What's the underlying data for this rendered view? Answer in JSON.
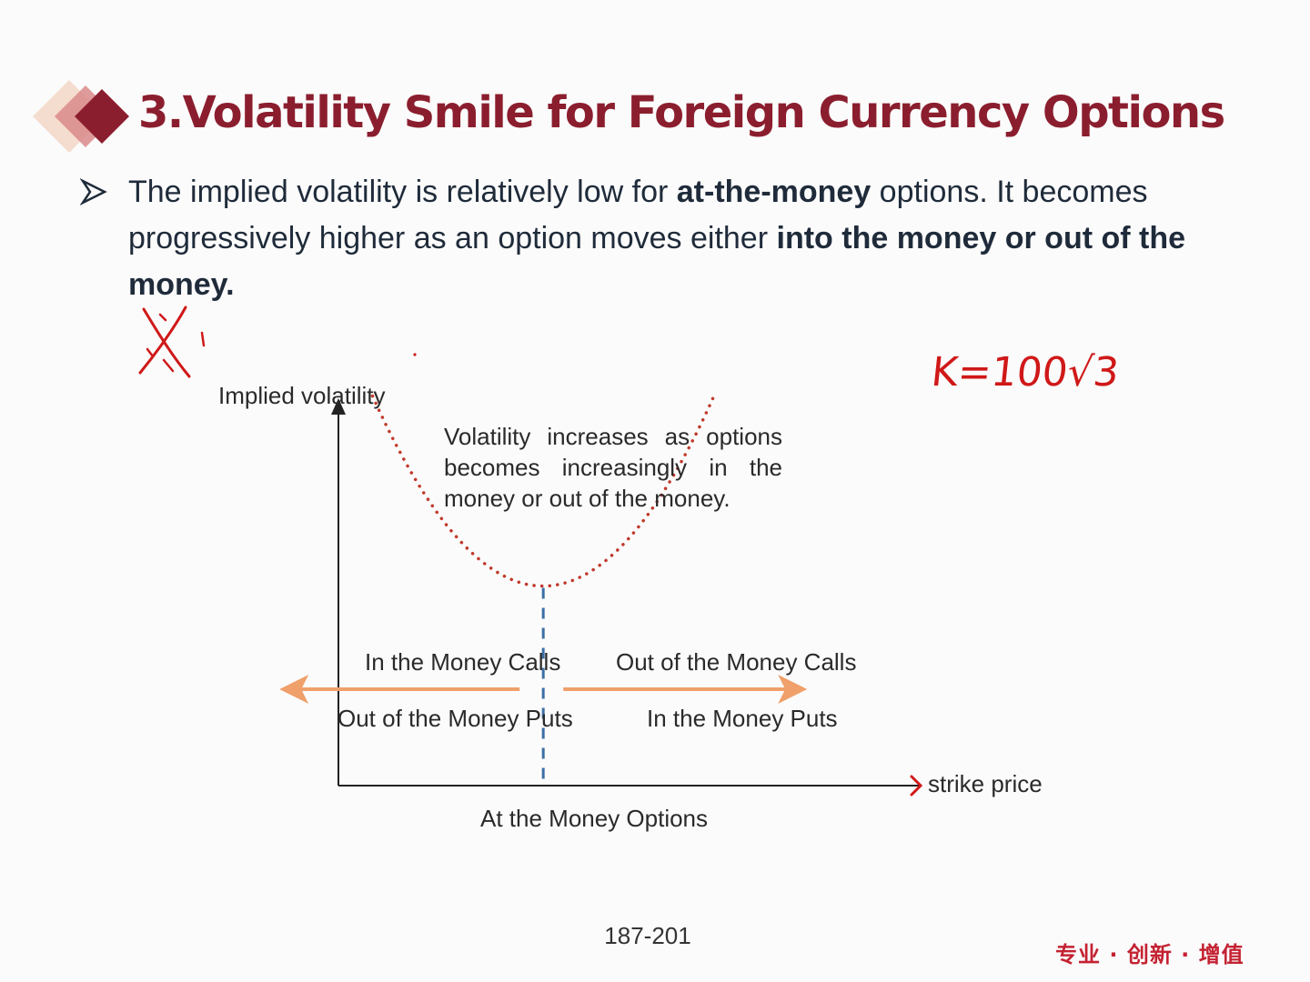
{
  "slide": {
    "title": "3.Volatility Smile for Foreign Currency Options",
    "bullet": {
      "p1": "The implied volatility is relatively low for ",
      "b1": "at-the-money",
      "p2": " options. It becomes progressively higher as an option moves either ",
      "b2": "into the money or out of the money."
    },
    "page_number": "187-201",
    "footer_motto": "专业 · 创新 · 增值",
    "handwritten_note": "K=100√3",
    "colors": {
      "title": "#8b1e2e",
      "accent_red": "#c0392b",
      "arrow_orange": "#f0a06a",
      "dashed_blue": "#3c6fa6",
      "ink_red": "#d01818"
    }
  },
  "chart_data": {
    "type": "line",
    "ylabel": "Implied volatility",
    "xlabel": "strike price",
    "annotation": "Volatility increases as options becomes increasingly in the money or out of the money.",
    "x_marker_label": "At the Money Options",
    "regions": {
      "left_top": "In the Money Calls",
      "left_bottom": "Out of the Money Puts",
      "right_top": "Out of the Money Calls",
      "right_bottom": "In the Money Puts"
    },
    "series": [
      {
        "style": "dotted",
        "x": [
          -1,
          -0.75,
          -0.5,
          -0.25,
          0,
          0.25,
          0.5,
          0.75,
          1
        ],
        "y": [
          1,
          0.5625,
          0.25,
          0.0625,
          0,
          0.0625,
          0.25,
          0.5625,
          1
        ]
      }
    ],
    "xlim": [
      -1.2,
      2.2
    ],
    "ylim": [
      -1.05,
      0.95
    ],
    "ticks": "none",
    "grid": false
  }
}
